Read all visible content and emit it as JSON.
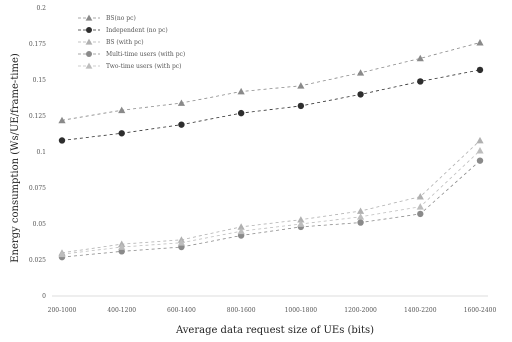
{
  "chart_data": {
    "type": "line",
    "xlabel": "Average data request size of UEs (bits)",
    "ylabel": "Energy consumption (Ws/UE/frame-time)",
    "categories": [
      "200-1000",
      "400-1200",
      "600-1400",
      "800-1600",
      "1000-1800",
      "1200-2000",
      "1400-2200",
      "1600-2400"
    ],
    "yticks": [
      "0",
      "0.025",
      "0.05",
      "0.075",
      "0.1",
      "0.125",
      "0.15",
      "0.175",
      "0.2"
    ],
    "ylim": [
      0,
      0.2
    ],
    "grid": false,
    "legend_position": "top-left",
    "series": [
      {
        "name": "BS(no pc)",
        "marker": "triangle",
        "color": "#8a8a8a",
        "values": [
          0.122,
          0.129,
          0.134,
          0.142,
          0.146,
          0.155,
          0.165,
          0.176
        ]
      },
      {
        "name": "Independent (no pc)",
        "marker": "circle",
        "color": "#2e2e2e",
        "values": [
          0.108,
          0.113,
          0.119,
          0.127,
          0.132,
          0.14,
          0.149,
          0.157
        ]
      },
      {
        "name": "BS (with pc)",
        "marker": "triangle",
        "color": "#b0b0b0",
        "values": [
          0.03,
          0.036,
          0.039,
          0.048,
          0.053,
          0.059,
          0.069,
          0.108
        ]
      },
      {
        "name": "Multi-time users (with pc)",
        "marker": "circle",
        "color": "#8a8a8a",
        "values": [
          0.027,
          0.031,
          0.034,
          0.042,
          0.048,
          0.051,
          0.057,
          0.094
        ]
      },
      {
        "name": "Two-time users (with pc)",
        "marker": "triangle",
        "color": "#bdbdbd",
        "values": [
          0.029,
          0.034,
          0.037,
          0.045,
          0.05,
          0.055,
          0.062,
          0.101
        ]
      }
    ]
  }
}
